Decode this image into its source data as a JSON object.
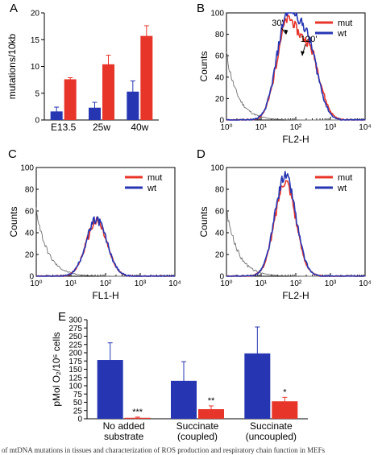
{
  "colors": {
    "mut": "#e8352a",
    "wt": "#2636b3",
    "unstained": "#707070",
    "axis": "#000000"
  },
  "caption": "of mtDNA mutations in tissues and characterization of ROS production and respiratory chain function in MEFs",
  "chart_data": [
    {
      "panel": "A",
      "type": "bar",
      "categories": [
        "E13.5",
        "25w",
        "40w"
      ],
      "series": [
        {
          "values": [
            1.6,
            2.3,
            5.3
          ],
          "errors": [
            0.8,
            1.0,
            2.0
          ],
          "color": "#2636b3"
        },
        {
          "values": [
            7.6,
            10.4,
            15.7
          ],
          "errors": [
            0.3,
            1.7,
            1.9
          ],
          "color": "#e8352a"
        }
      ],
      "xlabel": "",
      "ylabel": "mutations/10kb",
      "ylim": [
        0,
        20
      ],
      "yticks": [
        "0",
        "5",
        "10",
        "15",
        "20"
      ],
      "grid": false
    },
    {
      "panel": "B",
      "type": "line",
      "xscale": "log",
      "xlim": [
        1,
        10000
      ],
      "ylim": [
        0,
        100
      ],
      "xlabel": "FL2-H",
      "ylabel": "Counts",
      "xticks": [
        "10⁰",
        "10¹",
        "10²",
        "10³",
        "10⁴"
      ],
      "yticks": [
        "0",
        "20",
        "40",
        "60",
        "80",
        "100"
      ],
      "legend": {
        "position": "top-right",
        "entries": [
          "mut",
          "wt"
        ]
      },
      "annotations": [
        "30'",
        "120'"
      ],
      "series": [
        {
          "name": "mut",
          "peaks": [
            {
              "center": 55,
              "height": 88
            },
            {
              "center": 250,
              "height": 62
            }
          ]
        },
        {
          "name": "wt",
          "peaks": [
            {
              "center": 55,
              "height": 92
            },
            {
              "center": 220,
              "height": 68
            }
          ]
        },
        {
          "name": "unstained",
          "low_decay": true
        }
      ]
    },
    {
      "panel": "C",
      "type": "line",
      "xscale": "log",
      "xlim": [
        1,
        10000
      ],
      "ylim": [
        0,
        100
      ],
      "xlabel": "FL1-H",
      "ylabel": "Counts",
      "xticks": [
        "10⁰",
        "10¹",
        "10²",
        "10³",
        "10⁴"
      ],
      "yticks": [
        "0",
        "20",
        "40",
        "60",
        "80",
        "100"
      ],
      "legend": {
        "position": "top-right",
        "entries": [
          "mut",
          "wt"
        ]
      },
      "series": [
        {
          "name": "mut",
          "peaks": [
            {
              "center": 55,
              "height": 50
            }
          ]
        },
        {
          "name": "wt",
          "peaks": [
            {
              "center": 55,
              "height": 52
            }
          ]
        },
        {
          "name": "unstained",
          "low_decay": true
        }
      ]
    },
    {
      "panel": "D",
      "type": "line",
      "xscale": "log",
      "xlim": [
        1,
        10000
      ],
      "ylim": [
        0,
        100
      ],
      "xlabel": "FL2-H",
      "ylabel": "Counts",
      "xticks": [
        "10⁰",
        "10¹",
        "10²",
        "10³",
        "10⁴"
      ],
      "yticks": [
        "0",
        "20",
        "40",
        "60",
        "80",
        "100"
      ],
      "legend": {
        "position": "top-right",
        "entries": [
          "mut",
          "wt"
        ]
      },
      "series": [
        {
          "name": "mut",
          "peaks": [
            {
              "center": 50,
              "height": 88
            }
          ]
        },
        {
          "name": "wt",
          "peaks": [
            {
              "center": 50,
              "height": 93
            }
          ]
        },
        {
          "name": "unstained",
          "low_decay": true
        }
      ]
    },
    {
      "panel": "E",
      "type": "bar",
      "categories": [
        "No added\nsubstrate",
        "Succinate\n(coupled)",
        "Succinate\n(uncoupled)"
      ],
      "series": [
        {
          "values": [
            178,
            115,
            198
          ],
          "errors": [
            52,
            58,
            80
          ],
          "color": "#2636b3"
        },
        {
          "values": [
            3,
            29,
            53
          ],
          "errors": [
            2,
            10,
            12
          ],
          "color": "#e8352a"
        }
      ],
      "significance": [
        "***",
        "**",
        "*"
      ],
      "ylabel": "pMol O₂/10⁶ cells",
      "ylim": [
        0,
        300
      ],
      "yticks": [
        "0",
        "25",
        "50",
        "75",
        "100",
        "125",
        "150",
        "175",
        "200",
        "225",
        "250",
        "275",
        "300"
      ],
      "grid": false
    }
  ]
}
